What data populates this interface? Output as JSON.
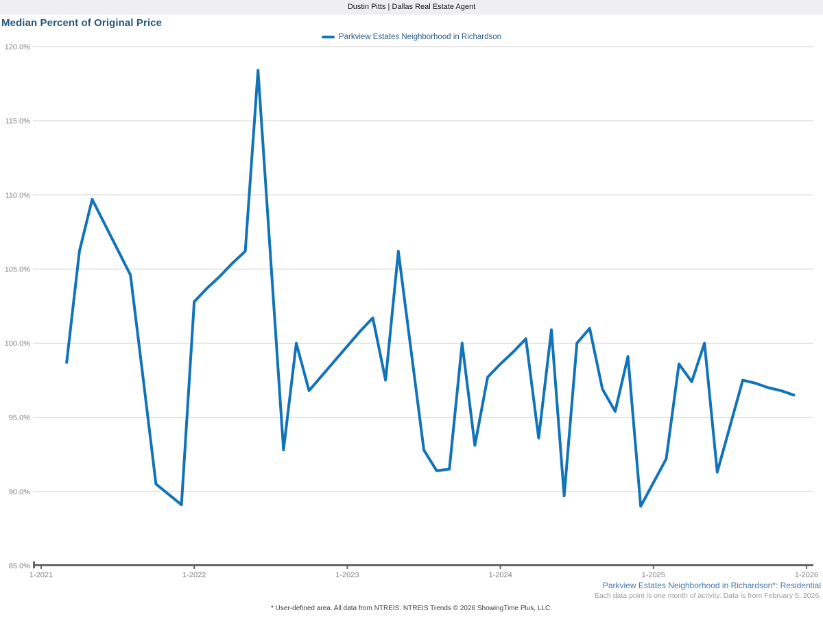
{
  "header": {
    "title": "Dustin Pitts | Dallas Real Estate Agent"
  },
  "legend": {
    "label": "Parkview Estates Neighborhood in Richardson"
  },
  "footnotes": {
    "series_note": "Parkview Estates Neighborhood in Richardson*: Residential",
    "data_note": "Each data point is one month of activity. Data is from February 5, 2026.",
    "source": "* User-defined area. All data from NTREIS. NTREIS Trends © 2026 ShowingTime Plus, LLC."
  },
  "colors": {
    "line": "#1173b8",
    "title_blue": "#26567d",
    "annotation_blue": "#4377ae",
    "gridline": "#cccccc",
    "axis": "#666666",
    "axis_label": "#7f7f7f"
  },
  "chart_data": {
    "type": "line",
    "title": "Median Percent of Original Price",
    "series_name": "Parkview Estates Neighborhood in Richardson",
    "legend_position": "top-center",
    "grid": "horizontal",
    "ylim": [
      85,
      120
    ],
    "y_tick_step": 5,
    "y_tick_labels": [
      "85.0%",
      "90.0%",
      "95.0%",
      "100.0%",
      "105.0%",
      "110.0%",
      "115.0%",
      "120.0%"
    ],
    "x_tick_labels": [
      "1-2021",
      "1-2022",
      "1-2023",
      "1-2024",
      "1-2025",
      "1-2026"
    ],
    "x_range_months": [
      "1-2021",
      "1-2026"
    ],
    "unit": "percent",
    "x": [
      "3-2021",
      "4-2021",
      "5-2021",
      "6-2021",
      "7-2021",
      "8-2021",
      "9-2021",
      "10-2021",
      "11-2021",
      "12-2021",
      "1-2022",
      "2-2022",
      "3-2022",
      "4-2022",
      "5-2022",
      "6-2022",
      "7-2022",
      "8-2022",
      "9-2022",
      "10-2022",
      "11-2022",
      "12-2022",
      "1-2023",
      "2-2023",
      "3-2023",
      "4-2023",
      "5-2023",
      "6-2023",
      "7-2023",
      "8-2023",
      "9-2023",
      "10-2023",
      "11-2023",
      "12-2023",
      "1-2024",
      "2-2024",
      "3-2024",
      "4-2024",
      "5-2024",
      "6-2024",
      "7-2024",
      "8-2024",
      "9-2024",
      "10-2024",
      "11-2024",
      "12-2024",
      "1-2025",
      "2-2025",
      "3-2025",
      "4-2025",
      "5-2025",
      "6-2025",
      "7-2025",
      "8-2025",
      "9-2025",
      "10-2025",
      "11-2025",
      "12-2025"
    ],
    "values": [
      98.7,
      106.2,
      109.7,
      108.0,
      106.3,
      104.6,
      97.6,
      90.5,
      89.8,
      89.1,
      102.8,
      103.7,
      104.5,
      105.4,
      106.2,
      118.4,
      105.6,
      92.8,
      100.0,
      96.8,
      97.8,
      98.8,
      99.8,
      100.8,
      101.7,
      97.5,
      106.2,
      99.5,
      92.8,
      91.4,
      91.5,
      100.0,
      93.1,
      97.7,
      98.6,
      99.4,
      100.3,
      93.6,
      100.9,
      89.7,
      100.0,
      101.0,
      96.9,
      95.4,
      99.1,
      89.0,
      90.6,
      92.2,
      98.6,
      97.4,
      100.0,
      91.3,
      94.4,
      97.5,
      97.3,
      97.0,
      96.8,
      96.5
    ],
    "line_color": "#1173b8"
  }
}
